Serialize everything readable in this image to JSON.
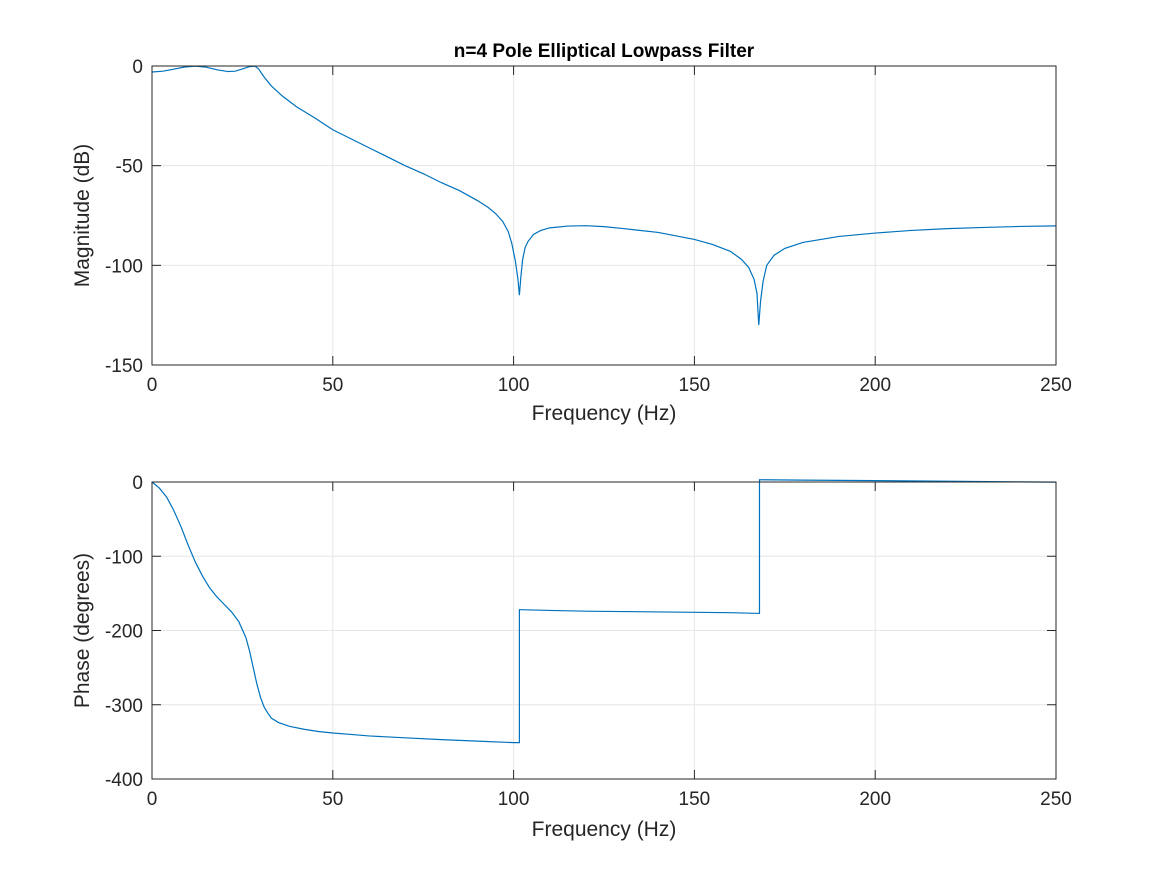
{
  "chart_data": [
    {
      "type": "line",
      "title": "n=4 Pole Elliptical Lowpass Filter",
      "xlabel": "Frequency (Hz)",
      "ylabel": "Magnitude (dB)",
      "xlim": [
        0,
        250
      ],
      "ylim": [
        -150,
        0
      ],
      "xticks": [
        0,
        50,
        100,
        150,
        200,
        250
      ],
      "yticks": [
        -150,
        -100,
        -50,
        0
      ],
      "grid": true,
      "color": "#0072BD",
      "series": [
        {
          "x": [
            0,
            3,
            6,
            9,
            12,
            15,
            18,
            21,
            23,
            25,
            27,
            28.5,
            29.5,
            31,
            33,
            36,
            40,
            45,
            50,
            55,
            60,
            65,
            70,
            75,
            80,
            85,
            90,
            93,
            95,
            97,
            98.5,
            99.5,
            100.5,
            101.2,
            101.6,
            102,
            102.5,
            103.2,
            104,
            105.5,
            107.5,
            110,
            115,
            120,
            125,
            130,
            140,
            150,
            155,
            160,
            163,
            165,
            166.5,
            167.3,
            167.8,
            168.3,
            169,
            170,
            172,
            175,
            180,
            190,
            200,
            210,
            220,
            230,
            240,
            250
          ],
          "y": [
            -3,
            -2.6,
            -1.6,
            -0.5,
            -0.1,
            -0.6,
            -1.9,
            -2.8,
            -2.6,
            -1.5,
            -0.3,
            -0.1,
            -1.5,
            -5.5,
            -10,
            -15,
            -20.5,
            -26,
            -32,
            -36.5,
            -41,
            -45.5,
            -50,
            -54,
            -58.5,
            -62.5,
            -67.5,
            -71,
            -74,
            -78,
            -83,
            -89,
            -98,
            -107,
            -115,
            -106,
            -97,
            -91,
            -88,
            -84.5,
            -82.5,
            -81.2,
            -80.3,
            -80.1,
            -80.6,
            -81.5,
            -83.5,
            -87,
            -89.5,
            -93,
            -97,
            -101,
            -107,
            -114,
            -130,
            -118,
            -108,
            -100,
            -95,
            -91.5,
            -88.5,
            -85.5,
            -83.8,
            -82.5,
            -81.6,
            -81,
            -80.5,
            -80.2
          ]
        }
      ]
    },
    {
      "type": "line",
      "title": "",
      "xlabel": "Frequency (Hz)",
      "ylabel": "Phase (degrees)",
      "xlim": [
        0,
        250
      ],
      "ylim": [
        -400,
        0
      ],
      "xticks": [
        0,
        50,
        100,
        150,
        200,
        250
      ],
      "yticks": [
        -400,
        -300,
        -200,
        -100,
        0
      ],
      "grid": true,
      "color": "#0072BD",
      "series": [
        {
          "x": [
            0,
            2,
            4,
            6,
            8,
            10,
            12,
            14,
            16,
            18,
            20,
            22,
            24,
            26,
            27,
            28,
            29,
            30,
            31,
            32,
            33,
            35,
            38,
            42,
            46,
            50,
            55,
            60,
            70,
            80,
            90,
            100,
            101.6,
            101.6,
            102,
            110,
            120,
            130,
            140,
            150,
            160,
            168,
            168,
            168.2,
            180,
            200,
            220,
            240,
            250
          ],
          "y": [
            0,
            -8,
            -20,
            -38,
            -60,
            -85,
            -108,
            -127,
            -143,
            -155,
            -165,
            -175,
            -188,
            -210,
            -228,
            -250,
            -272,
            -290,
            -303,
            -311,
            -318,
            -324,
            -329,
            -333,
            -336,
            -338,
            -340,
            -342,
            -344.5,
            -347,
            -349,
            -351,
            -351,
            -172,
            -172,
            -173,
            -174,
            -174.5,
            -175,
            -175.5,
            -176,
            -177,
            3,
            3,
            2.5,
            1.8,
            1,
            0.2,
            -0.2
          ]
        }
      ]
    }
  ]
}
